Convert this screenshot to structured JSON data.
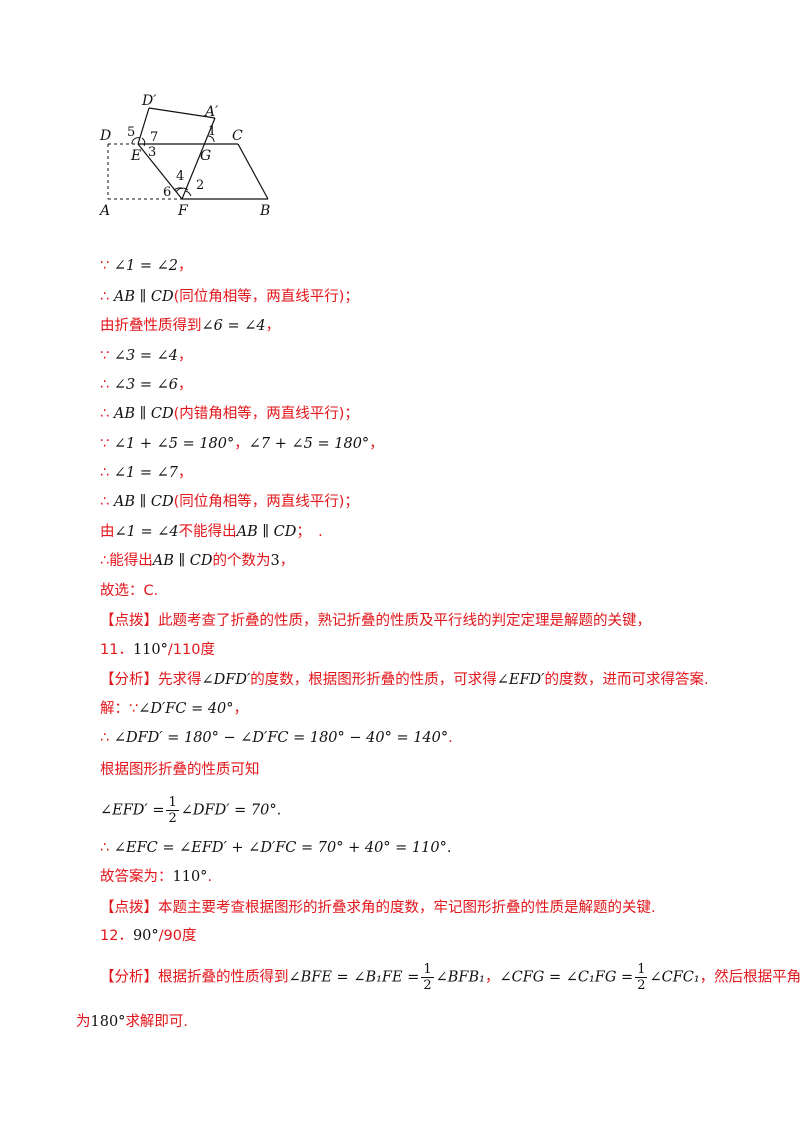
{
  "figure": {
    "labels": {
      "D_prime": "D′",
      "A_prime": "A′",
      "D": "D",
      "C": "C",
      "E": "E",
      "G": "G",
      "A": "A",
      "F": "F",
      "B": "B",
      "n1": "1",
      "n2": "2",
      "n3": "3",
      "n4": "4",
      "n5": "5",
      "n6": "6",
      "n7": "7"
    }
  },
  "lines": {
    "l1": {
      "pre": "∵ ",
      "math": "∠1 = ∠2",
      "post": "，"
    },
    "l2": {
      "pre": "∴ ",
      "math": "AB ∥ CD",
      "post": "(同位角相等，两直线平行)；"
    },
    "l3": {
      "pre": "由折叠性质得到",
      "math": "∠6 = ∠4",
      "post": "，"
    },
    "l4": {
      "pre": "∵ ",
      "math": "∠3 = ∠4",
      "post": "，"
    },
    "l5": {
      "pre": "∴ ",
      "math": "∠3 = ∠6",
      "post": "，"
    },
    "l6": {
      "pre": "∴ ",
      "math": "AB ∥ CD",
      "post": "(内错角相等，两直线平行)；"
    },
    "l7": {
      "pre": "∵ ",
      "math": "∠1 + ∠5 = 180°",
      "mid": "，",
      "math2": "∠7 + ∠5 = 180°",
      "post": "，"
    },
    "l8": {
      "pre": "∴ ",
      "math": "∠1 = ∠7",
      "post": "，"
    },
    "l9": {
      "pre": "∴ ",
      "math": "AB ∥ CD",
      "post": "(同位角相等，两直线平行)；"
    },
    "l10": {
      "pre": "由",
      "math": "∠1 = ∠4",
      "mid": "不能得出",
      "math2": "AB ∥ CD",
      "post": "；　."
    },
    "l11": {
      "pre": "∴能得出",
      "math": "AB ∥ CD",
      "mid": "的个数为",
      "num": "3",
      "post": "，"
    },
    "l12": {
      "text": "故选：C."
    },
    "l13": {
      "text": "【点拨】此题考查了折叠的性质，熟记折叠的性质及平行线的判定定理是解题的关键，"
    },
    "l14": {
      "pre": "11．",
      "math": "110°",
      "post": "/110度"
    },
    "l15": {
      "pre": "【分析】先求得",
      "math": "∠DFD′",
      "mid": "的度数，根据图形折叠的性质，可求得",
      "math2": "∠EFD′",
      "post": "的度数，进而可求得答案."
    },
    "l16": {
      "pre": "解：∵",
      "math": "∠D′FC = 40°",
      "post": "，"
    },
    "l17": {
      "pre": "∴ ",
      "math": "∠DFD′ = 180° − ∠D′FC = 180° − 40° = 140°",
      "post": "."
    },
    "l18": {
      "text": "根据图形折叠的性质可知"
    },
    "l19": {
      "math": "∠EFD′ =",
      "frac_num": "1",
      "frac_den": "2",
      "math2": "∠DFD′ = 70°",
      "post": "."
    },
    "l20": {
      "pre": "∴ ",
      "math": "∠EFC = ∠EFD′ + ∠D′FC = 70° + 40° = 110°",
      "post": "."
    },
    "l21": {
      "pre": "故答案为：",
      "math": "110°",
      "post": "."
    },
    "l22": {
      "text": "【点拨】本题主要考查根据图形的折叠求角的度数，牢记图形折叠的性质是解题的关键."
    },
    "l23": {
      "pre": "12．",
      "math": "90°",
      "post": "/90度"
    },
    "l24": {
      "pre": "【分析】根据折叠的性质得到",
      "math": "∠BFE = ∠B₁FE =",
      "frac_num": "1",
      "frac_den": "2",
      "math2": "∠BFB₁",
      "mid": "，",
      "math3": "∠CFG = ∠C₁FG =",
      "frac2_num": "1",
      "frac2_den": "2",
      "math4": "∠CFC₁",
      "post": "，然后根据平角"
    },
    "l25": {
      "pre": "为",
      "math": "180°",
      "post": "求解即可."
    }
  }
}
